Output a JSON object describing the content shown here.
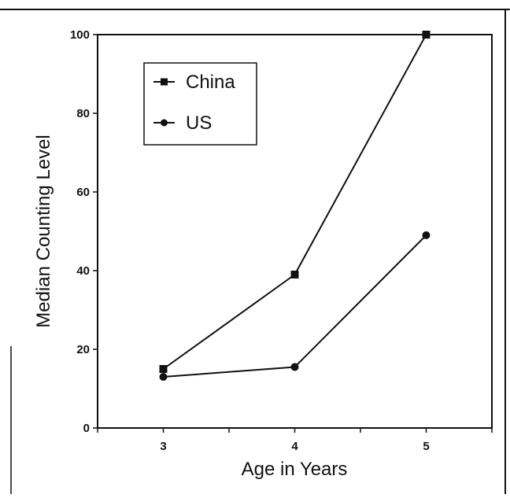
{
  "chart_data": {
    "type": "line",
    "x": [
      3,
      4,
      5
    ],
    "xlabel": "Age in Years",
    "ylabel": "Median Counting Level",
    "xlim": [
      2.5,
      5.5
    ],
    "ylim": [
      0,
      100
    ],
    "xticks": [
      3,
      4,
      5
    ],
    "yticks": [
      0,
      20,
      40,
      60,
      80,
      100
    ],
    "grid": false,
    "legend_position": "top-left",
    "series": [
      {
        "name": "China",
        "marker": "square",
        "values": [
          15,
          39,
          100
        ]
      },
      {
        "name": "US",
        "marker": "circle",
        "values": [
          13,
          15.5,
          49
        ]
      }
    ]
  },
  "colors": {
    "ink": "#111111",
    "background": "#ffffff"
  }
}
